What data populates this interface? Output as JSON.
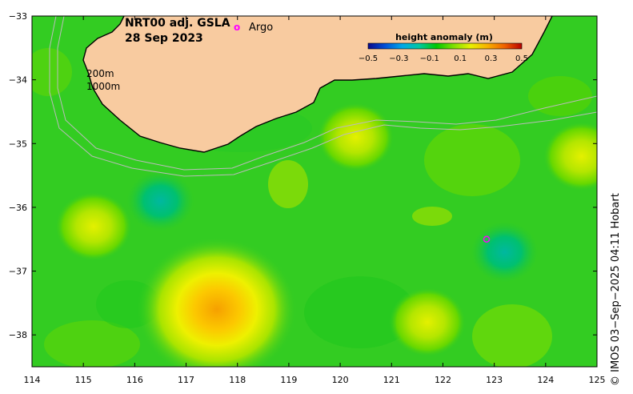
{
  "title": {
    "line1": "NRT00 adj. GSLA",
    "line2": "28 Sep 2023"
  },
  "legend": {
    "argo_symbol": "o",
    "argo_label": "Argo",
    "colorbar_title": "height anomaly (m)",
    "colorbar_ticks": [
      "−0.5",
      "−0.3",
      "−0.1",
      "0.1",
      "0.3",
      "0.5"
    ],
    "colorbar_range": [
      -0.5,
      0.5
    ],
    "colorbar_colors": [
      "#0a0a8c",
      "#0050d8",
      "#00a8e8",
      "#00c8a0",
      "#00c800",
      "#7ee000",
      "#e8f000",
      "#f8b000",
      "#f06000",
      "#b80000"
    ]
  },
  "contours": {
    "shallow_label": "200m",
    "deep_label": "1000m"
  },
  "credit": "© IMOS 03−Sep−2025 04:11 Hobart",
  "colors": {
    "land": "#f8cba0",
    "coast": "#000000",
    "isobath": "#bbbbbb",
    "argo": "#ff00ff",
    "base_anomaly": "#33cc22"
  },
  "axes": {
    "x_range": [
      114,
      125
    ],
    "y_range": [
      -38.5,
      -33
    ],
    "x_ticks": [
      "114",
      "115",
      "116",
      "117",
      "118",
      "119",
      "120",
      "121",
      "122",
      "123",
      "124",
      "125"
    ],
    "y_ticks": [
      "−33",
      "−34",
      "−35",
      "−36",
      "−37",
      "−38"
    ]
  },
  "anomaly_features": [
    {
      "lon": 117.6,
      "lat": -37.6,
      "value": 0.32
    },
    {
      "lon": 115.2,
      "lat": -36.3,
      "value": 0.15
    },
    {
      "lon": 120.3,
      "lat": -34.9,
      "value": 0.18
    },
    {
      "lon": 121.7,
      "lat": -37.8,
      "value": 0.15
    },
    {
      "lon": 124.7,
      "lat": -35.2,
      "value": 0.14
    },
    {
      "lon": 116.5,
      "lat": -35.9,
      "value": -0.15
    },
    {
      "lon": 123.2,
      "lat": -36.7,
      "value": -0.1
    }
  ],
  "argo_floats": [
    {
      "lon": 122.85,
      "lat": -36.5
    }
  ]
}
